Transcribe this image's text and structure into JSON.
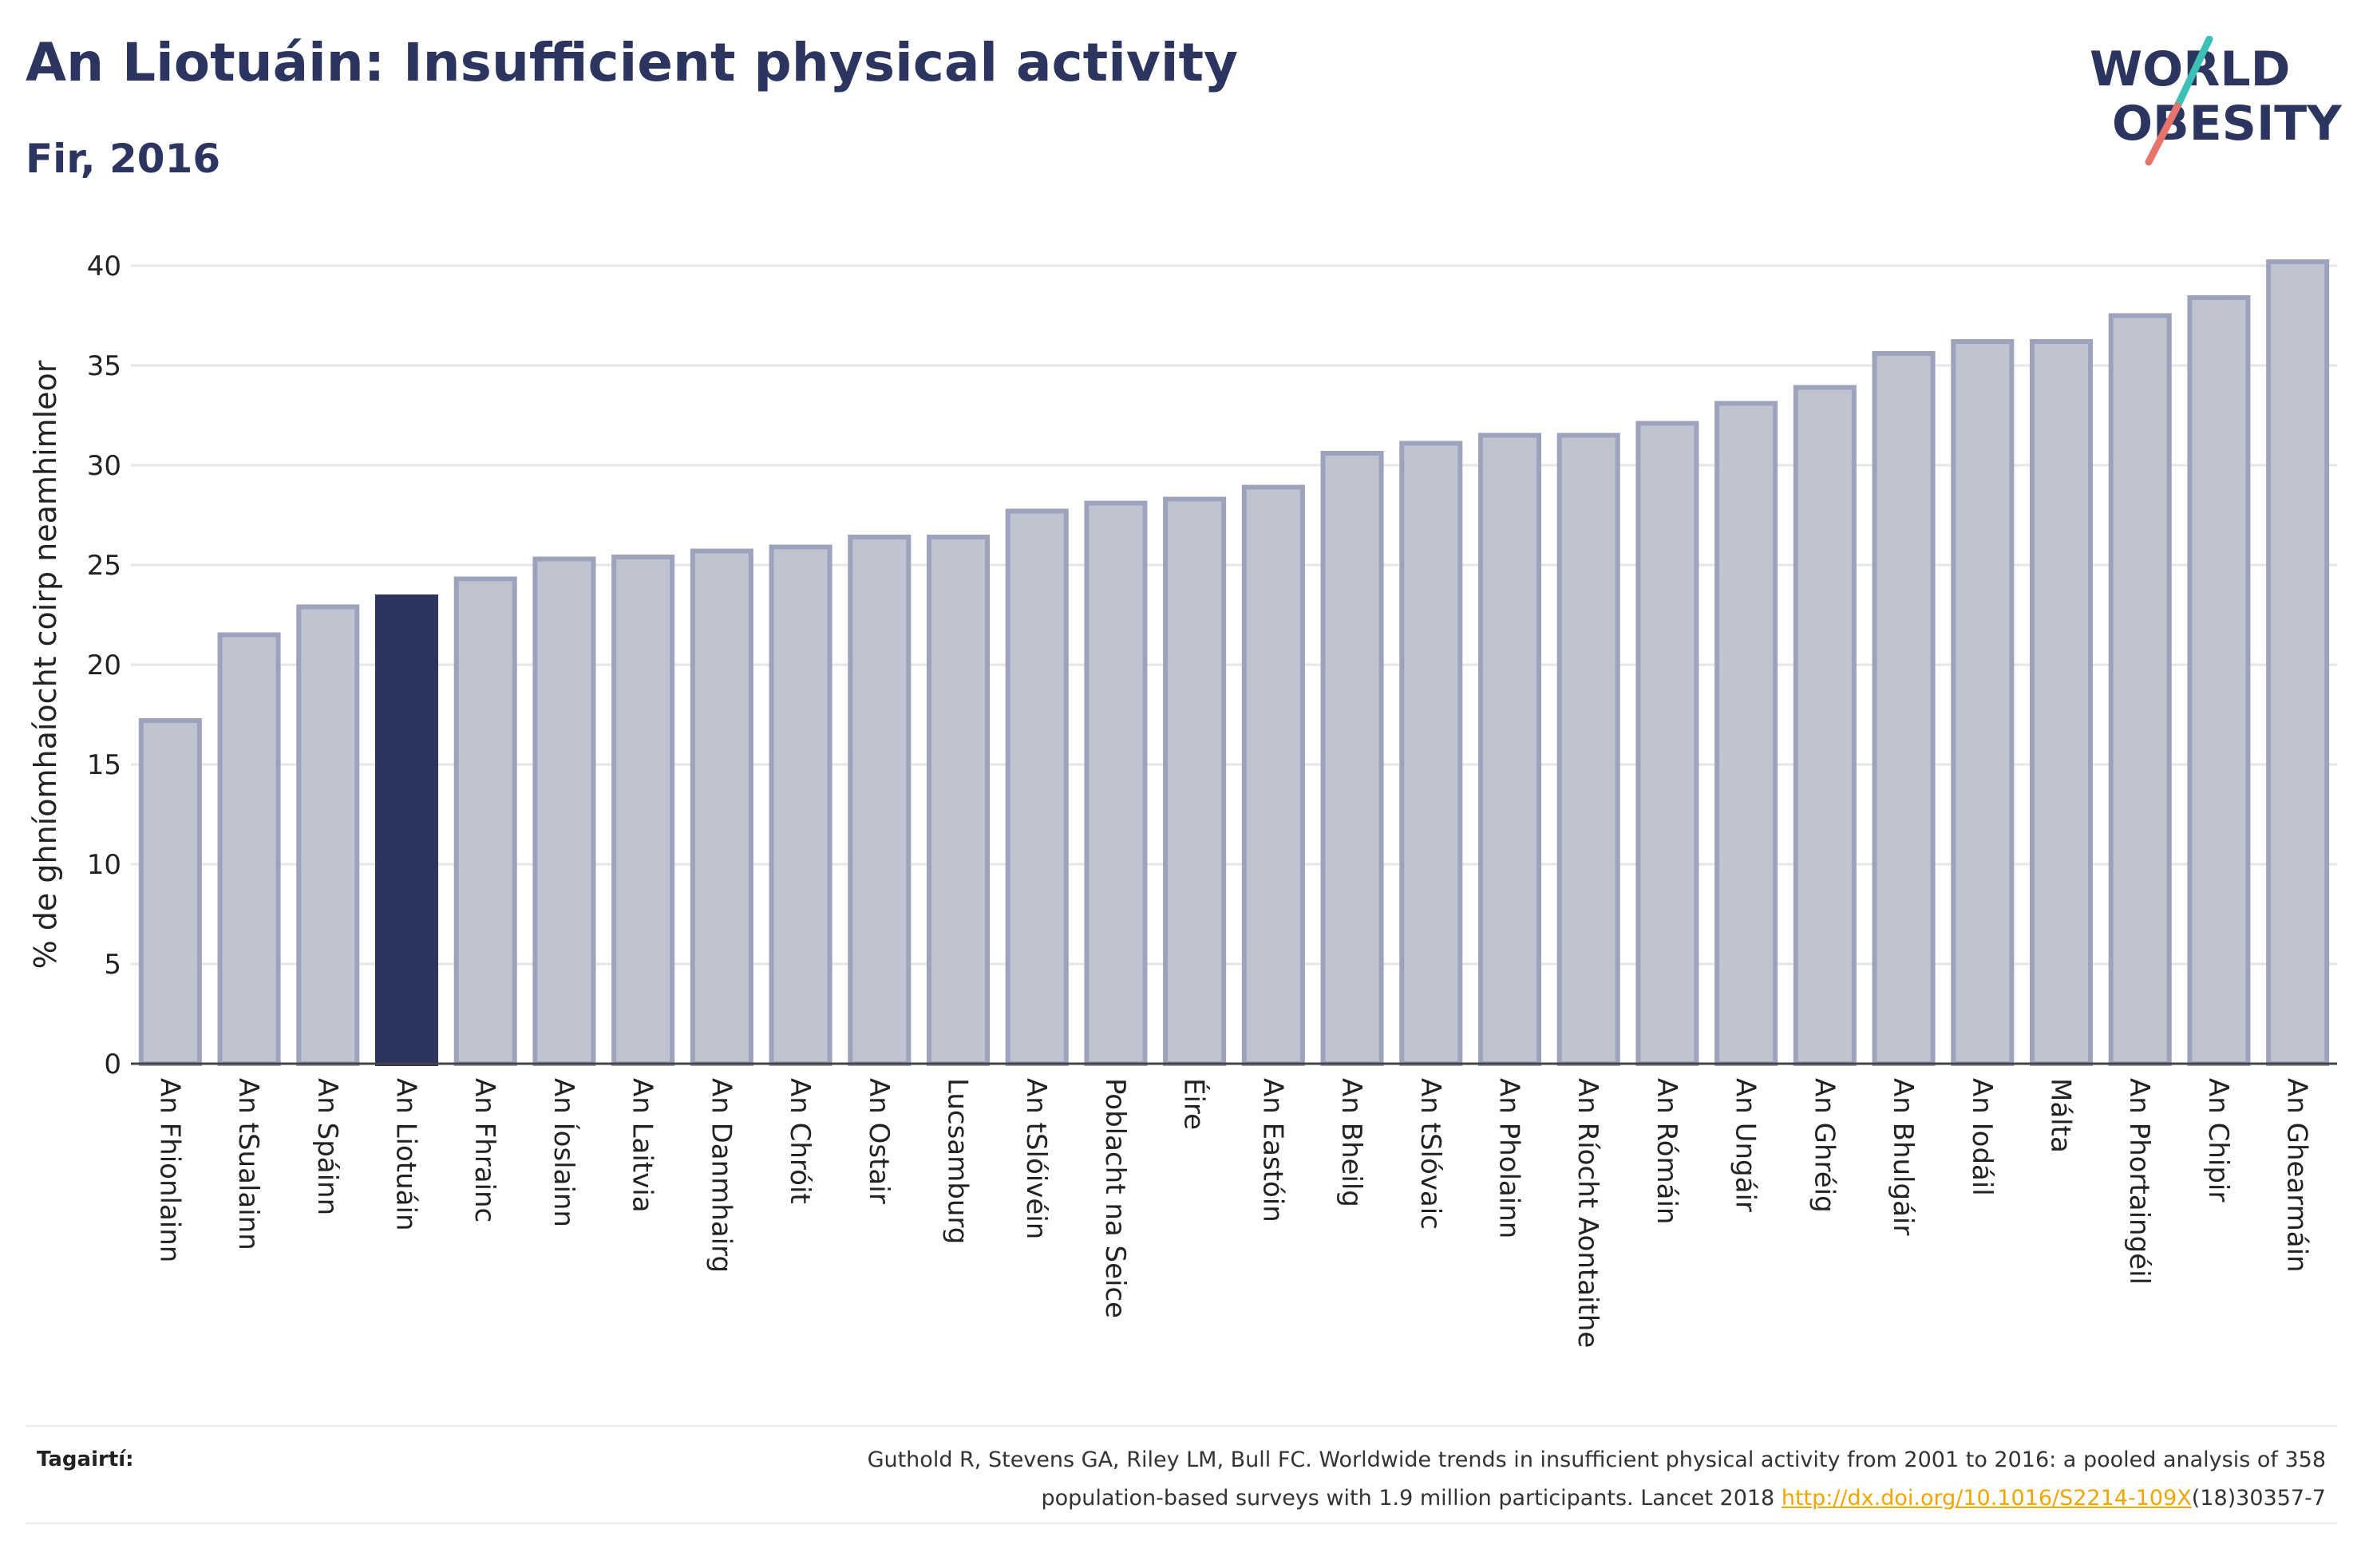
{
  "header": {
    "title": "An Liotuáin: Insufficient physical activity",
    "subtitle": "Fir, 2016"
  },
  "logo": {
    "line1": "WORLD",
    "line2": "OBESITY"
  },
  "colors": {
    "bar": "#c0c3d0",
    "bar_border": "#9ea3bd",
    "highlight": "#2b3560",
    "text": "#2b3560"
  },
  "chart_data": {
    "type": "bar",
    "title": "An Liotuáin: Insufficient physical activity",
    "subtitle": "Fir, 2016",
    "ylabel": "% de ghníomhaíocht coirp neamhimleor",
    "xlabel": "",
    "ylim": [
      0,
      40
    ],
    "yticks": [
      0,
      5,
      10,
      15,
      20,
      25,
      30,
      35,
      40
    ],
    "grid": true,
    "highlight": "An Liotuáin",
    "categories": [
      "An Fhionlainn",
      "An tSualainn",
      "An Spáinn",
      "An Liotuáin",
      "An Fhrainc",
      "An Íoslainn",
      "An Laitvia",
      "An Danmhairg",
      "An Chróit",
      "An Ostair",
      "Lucsamburg",
      "An tSlóivéin",
      "Poblacht na Seice",
      "Éire",
      "An Eastóin",
      "An Bheilg",
      "An tSlóvaic",
      "An Pholainn",
      "An Ríocht Aontaithe",
      "An Rómáin",
      "An Ungáir",
      "An Ghréig",
      "An Bhulgáir",
      "An Iodáil",
      "Málta",
      "An Phortaingéil",
      "An Chipir",
      "An Ghearmáin"
    ],
    "values": [
      17.2,
      21.5,
      22.9,
      23.4,
      24.3,
      25.3,
      25.4,
      25.7,
      25.9,
      26.4,
      26.4,
      27.7,
      28.1,
      28.3,
      28.9,
      30.6,
      31.1,
      31.5,
      31.5,
      32.1,
      33.1,
      33.9,
      35.6,
      36.2,
      36.2,
      37.5,
      38.4,
      40.2
    ]
  },
  "references": {
    "label": "Tagairtí:",
    "line1": "Guthold R, Stevens GA, Riley LM, Bull FC. Worldwide trends in insufficient physical activity from 2001 to 2016: a pooled analysis of 358",
    "line2_pre": "population-based surveys with 1.9 million participants. Lancet 2018 ",
    "link": "http://dx.doi.org/10.1016/S2214-109X",
    "line2_post": "(18)30357-7"
  }
}
